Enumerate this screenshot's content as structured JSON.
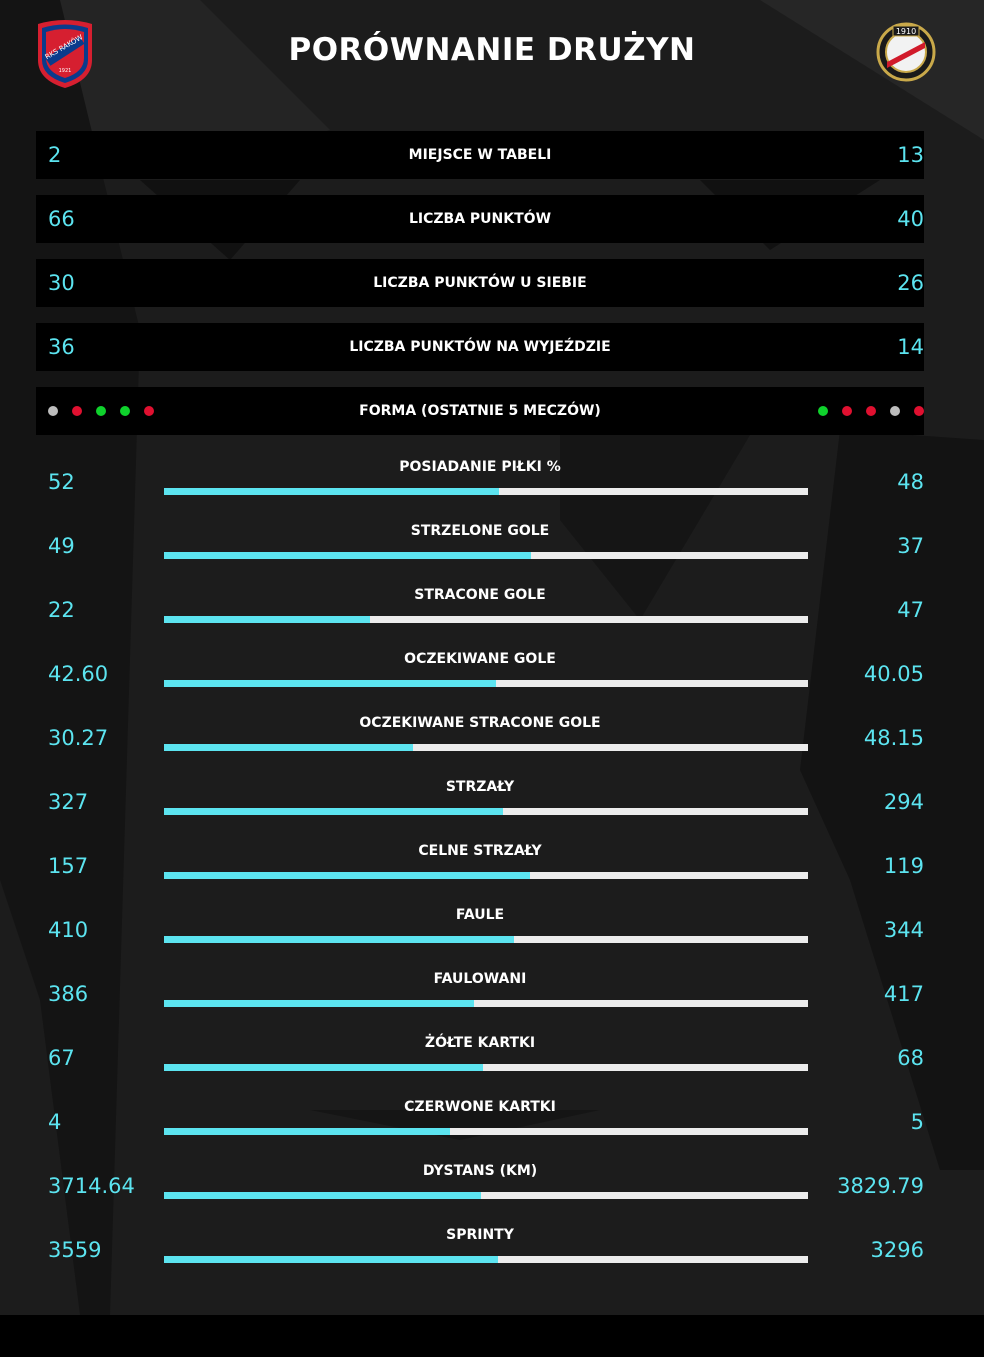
{
  "header": {
    "title": "PORÓWNANIE DRUŻYN"
  },
  "home_crest": {
    "lettering": [
      "RKS RAKÓW",
      "CZĘSTOCHOWA",
      "1921"
    ]
  },
  "away_crest": {
    "lettering": [
      "1910"
    ]
  },
  "colors": {
    "accent": "#5ce4f0",
    "win": "#0fd22c",
    "loss": "#e01030",
    "draw": "#bdbdbd",
    "bar_bg": "#ececec"
  },
  "table_rows": [
    {
      "label": "MIEJSCE W TABELI",
      "home": "2",
      "away": "13"
    },
    {
      "label": "LICZBA PUNKTÓW",
      "home": "66",
      "away": "40"
    },
    {
      "label": "LICZBA PUNKTÓW U SIEBIE",
      "home": "30",
      "away": "26"
    },
    {
      "label": "LICZBA PUNKTÓW NA WYJEŹDZIE",
      "home": "36",
      "away": "14"
    }
  ],
  "form": {
    "label": "FORMA (OSTATNIE 5 MECZÓW)",
    "home": [
      "d",
      "l",
      "w",
      "w",
      "l"
    ],
    "away": [
      "w",
      "l",
      "l",
      "d",
      "l"
    ]
  },
  "stats": [
    {
      "label": "POSIADANIE PIŁKI %",
      "home": "52",
      "away": "48",
      "share": 0.52
    },
    {
      "label": "STRZELONE GOLE",
      "home": "49",
      "away": "37",
      "share": 0.57
    },
    {
      "label": "STRACONE GOLE",
      "home": "22",
      "away": "47",
      "share": 0.32
    },
    {
      "label": "OCZEKIWANE GOLE",
      "home": "42.60",
      "away": "40.05",
      "share": 0.515
    },
    {
      "label": "OCZEKIWANE STRACONE GOLE",
      "home": "30.27",
      "away": "48.15",
      "share": 0.386
    },
    {
      "label": "STRZAŁY",
      "home": "327",
      "away": "294",
      "share": 0.527
    },
    {
      "label": "CELNE STRZAŁY",
      "home": "157",
      "away": "119",
      "share": 0.569
    },
    {
      "label": "FAULE",
      "home": "410",
      "away": "344",
      "share": 0.544
    },
    {
      "label": "FAULOWANI",
      "home": "386",
      "away": "417",
      "share": 0.481
    },
    {
      "label": "ŻÓŁTE KARTKI",
      "home": "67",
      "away": "68",
      "share": 0.496
    },
    {
      "label": "CZERWONE KARTKI",
      "home": "4",
      "away": "5",
      "share": 0.444
    },
    {
      "label": "DYSTANS (KM)",
      "home": "3714.64",
      "away": "3829.79",
      "share": 0.492
    },
    {
      "label": "SPRINTY",
      "home": "3559",
      "away": "3296",
      "share": 0.519
    }
  ]
}
